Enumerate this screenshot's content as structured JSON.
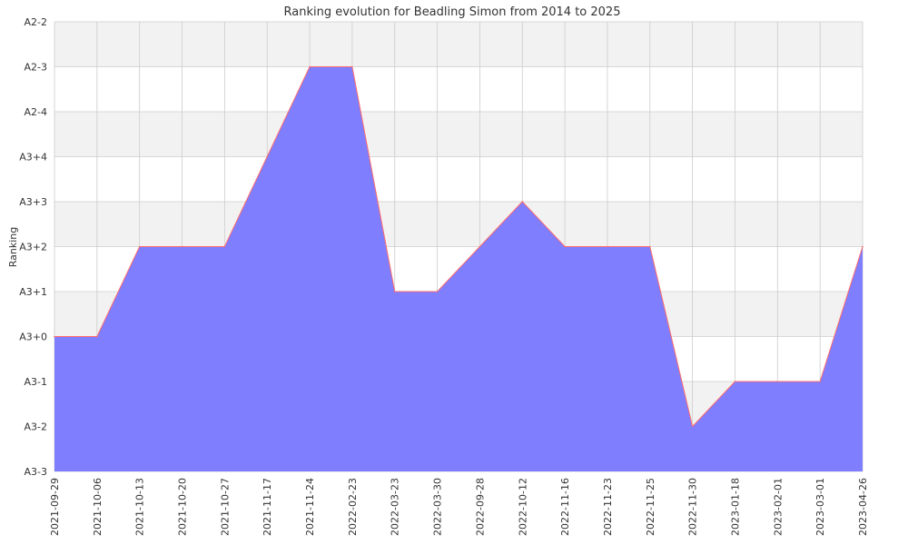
{
  "chart_data": {
    "type": "area",
    "title": "Ranking evolution for Beadling Simon from 2014 to 2025",
    "xlabel": "",
    "ylabel": "Ranking",
    "y_levels": [
      "A3-3",
      "A3-2",
      "A3-1",
      "A3+0",
      "A3+1",
      "A3+2",
      "A3+3",
      "A3+4",
      "A2-4",
      "A2-3",
      "A2-2"
    ],
    "categories": [
      "2021-09-29",
      "2021-10-06",
      "2021-10-13",
      "2021-10-20",
      "2021-10-27",
      "2021-11-17",
      "2021-11-24",
      "2022-02-23",
      "2022-03-23",
      "2022-03-30",
      "2022-09-28",
      "2022-10-12",
      "2022-11-16",
      "2022-11-23",
      "2022-11-25",
      "2022-11-30",
      "2023-01-18",
      "2023-02-01",
      "2023-03-01",
      "2023-04-26"
    ],
    "values": [
      "A3+0",
      "A3+0",
      "A3+2",
      "A3+2",
      "A3+2",
      "A3+4",
      "A2-3",
      "A2-3",
      "A3+1",
      "A3+1",
      "A3+2",
      "A3+3",
      "A3+2",
      "A3+2",
      "A3+2",
      "A3-2",
      "A3-1",
      "A3-1",
      "A3-1",
      "A3+2"
    ],
    "grid": true,
    "legend": "none",
    "colors": {
      "fill": "#7b7bff",
      "line": "#ff6b6b",
      "band": "#f2f2f2",
      "grid": "#cccccc"
    }
  }
}
